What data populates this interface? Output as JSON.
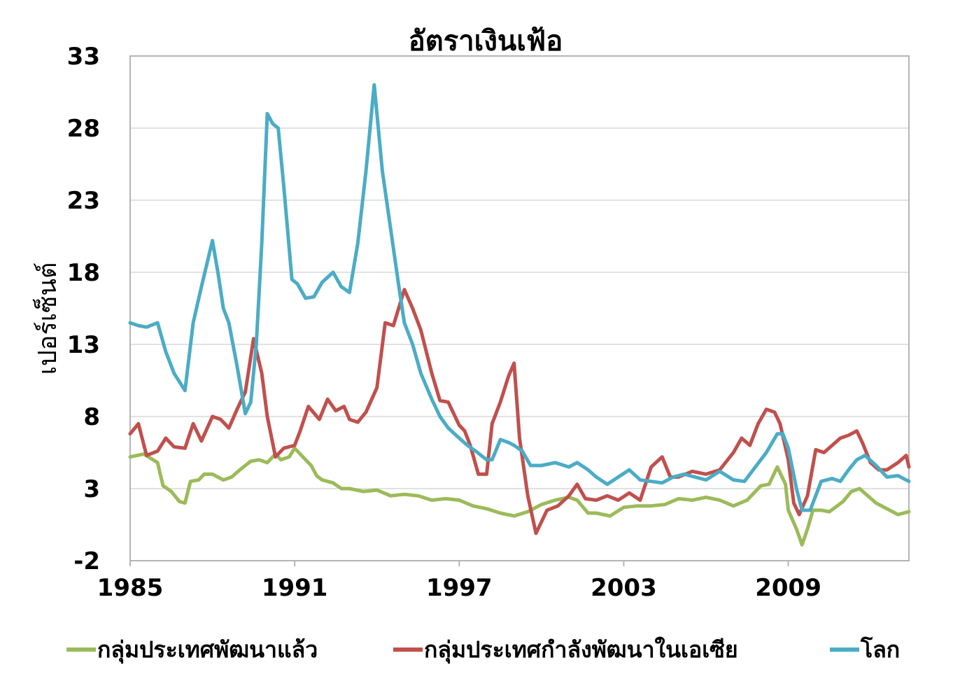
{
  "chart_data": {
    "type": "line",
    "title": "อัตราเงินเฟ้อ",
    "ylabel": "เปอร์เซ็นต์",
    "xlabel": "",
    "xlim": [
      1985,
      2013.4
    ],
    "ylim": [
      -2,
      33
    ],
    "y_ticks": [
      -2,
      3,
      8,
      13,
      18,
      23,
      28,
      33
    ],
    "x_ticks": [
      1985,
      1991,
      1997,
      2003,
      2009
    ],
    "grid": "horizontal",
    "legend_position": "bottom",
    "series": [
      {
        "name": "กลุ่มประเทศพัฒนาแล้ว",
        "color": "#9bbb59",
        "x": [
          1985,
          1985.5,
          1986,
          1986.2,
          1986.5,
          1986.8,
          1987,
          1987.2,
          1987.5,
          1987.7,
          1988,
          1988.4,
          1988.7,
          1989,
          1989.4,
          1989.7,
          1990,
          1990.3,
          1990.5,
          1990.8,
          1991,
          1991.3,
          1991.6,
          1991.8,
          1992,
          1992.4,
          1992.7,
          1993,
          1993.5,
          1994,
          1994.5,
          1995,
          1995.5,
          1996,
          1996.5,
          1997,
          1997.5,
          1998,
          1998.5,
          1999,
          1999.5,
          2000,
          2000.5,
          2001,
          2001.3,
          2001.7,
          2002,
          2002.5,
          2003,
          2003.5,
          2004,
          2004.5,
          2005,
          2005.5,
          2006,
          2006.5,
          2007,
          2007.5,
          2008,
          2008.3,
          2008.6,
          2008.9,
          2009,
          2009.3,
          2009.5,
          2009.7,
          2009.9,
          2010.2,
          2010.5,
          2011,
          2011.3,
          2011.6,
          2011.9,
          2012.2,
          2012.6,
          2013,
          2013.4
        ],
        "values": [
          5.2,
          5.4,
          4.8,
          3.2,
          2.8,
          2.1,
          2.0,
          3.5,
          3.6,
          4.0,
          4.0,
          3.6,
          3.8,
          4.3,
          4.9,
          5.0,
          4.8,
          5.4,
          5.0,
          5.2,
          5.8,
          5.2,
          4.6,
          3.9,
          3.6,
          3.4,
          3.0,
          3.0,
          2.8,
          2.9,
          2.5,
          2.6,
          2.5,
          2.2,
          2.3,
          2.2,
          1.8,
          1.6,
          1.3,
          1.1,
          1.4,
          1.9,
          2.2,
          2.4,
          2.2,
          1.3,
          1.3,
          1.1,
          1.7,
          1.8,
          1.8,
          1.9,
          2.3,
          2.2,
          2.4,
          2.2,
          1.8,
          2.2,
          3.2,
          3.3,
          4.5,
          3.3,
          1.5,
          0.2,
          -0.9,
          0.2,
          1.5,
          1.5,
          1.4,
          2.1,
          2.8,
          3.0,
          2.5,
          2.0,
          1.6,
          1.2,
          1.4
        ]
      },
      {
        "name": "กลุ่มประเทศกำลังพัฒนาในเอเซีย",
        "color": "#c0504d",
        "x": [
          1985,
          1985.3,
          1985.6,
          1986,
          1986.3,
          1986.6,
          1987,
          1987.3,
          1987.6,
          1988,
          1988.3,
          1988.6,
          1988.9,
          1989.2,
          1989.5,
          1989.8,
          1990,
          1990.3,
          1990.6,
          1991,
          1991.2,
          1991.5,
          1991.9,
          1992.2,
          1992.5,
          1992.8,
          1993,
          1993.3,
          1993.6,
          1994,
          1994.3,
          1994.6,
          1995,
          1995.3,
          1995.6,
          1996,
          1996.3,
          1996.6,
          1997,
          1997.2,
          1997.4,
          1997.7,
          1998,
          1998.2,
          1998.5,
          1998.8,
          1999,
          1999.2,
          1999.5,
          1999.8,
          2000.2,
          2000.6,
          2001,
          2001.3,
          2001.6,
          2002,
          2002.4,
          2002.8,
          2003.2,
          2003.6,
          2004,
          2004.4,
          2004.7,
          2005,
          2005.5,
          2006,
          2006.5,
          2007,
          2007.3,
          2007.6,
          2007.9,
          2008.2,
          2008.5,
          2008.7,
          2009,
          2009.2,
          2009.4,
          2009.7,
          2010,
          2010.3,
          2010.6,
          2010.9,
          2011.2,
          2011.5,
          2011.7,
          2012,
          2012.3,
          2012.6,
          2013,
          2013.3,
          2013.4
        ],
        "values": [
          6.8,
          7.5,
          5.3,
          5.6,
          6.5,
          5.9,
          5.8,
          7.5,
          6.3,
          8.0,
          7.8,
          7.2,
          8.5,
          9.7,
          13.4,
          11.0,
          8.0,
          5.2,
          5.8,
          6.0,
          7.0,
          8.7,
          7.8,
          9.2,
          8.4,
          8.7,
          7.8,
          7.6,
          8.3,
          10.0,
          14.5,
          14.3,
          16.8,
          15.5,
          14.0,
          11.0,
          9.1,
          9.0,
          7.4,
          7.0,
          6.0,
          4.0,
          4.0,
          7.5,
          9.0,
          10.8,
          11.7,
          6.5,
          2.5,
          -0.1,
          1.5,
          1.8,
          2.5,
          3.3,
          2.3,
          2.2,
          2.5,
          2.2,
          2.7,
          2.2,
          4.5,
          5.2,
          3.8,
          3.8,
          4.2,
          4.0,
          4.3,
          5.5,
          6.5,
          6.0,
          7.5,
          8.5,
          8.3,
          7.5,
          5.0,
          2.0,
          1.2,
          2.5,
          5.7,
          5.5,
          6.0,
          6.5,
          6.7,
          7.0,
          6.2,
          4.8,
          4.3,
          4.3,
          4.8,
          5.3,
          4.5
        ]
      },
      {
        "name": "โลก",
        "color": "#4bacc6",
        "x": [
          1985,
          1985.3,
          1985.6,
          1986,
          1986.3,
          1986.6,
          1987,
          1987.3,
          1987.6,
          1988,
          1988.2,
          1988.4,
          1988.6,
          1988.9,
          1989.2,
          1989.4,
          1989.6,
          1989.8,
          1990,
          1990.2,
          1990.4,
          1990.6,
          1990.9,
          1991.1,
          1991.4,
          1991.7,
          1992,
          1992.4,
          1992.7,
          1993,
          1993.3,
          1993.6,
          1993.9,
          1994.2,
          1994.5,
          1994.8,
          1995,
          1995.3,
          1995.6,
          1996,
          1996.3,
          1996.6,
          1997,
          1997.3,
          1997.6,
          1998,
          1998.2,
          1998.5,
          1998.8,
          1999,
          1999.3,
          1999.6,
          2000,
          2000.5,
          2001,
          2001.3,
          2001.7,
          2002,
          2002.4,
          2002.8,
          2003.2,
          2003.6,
          2004,
          2004.4,
          2004.8,
          2005.2,
          2005.6,
          2006,
          2006.5,
          2007,
          2007.4,
          2007.8,
          2008.2,
          2008.6,
          2008.8,
          2009,
          2009.3,
          2009.5,
          2009.8,
          2010.2,
          2010.6,
          2010.9,
          2011.2,
          2011.5,
          2011.8,
          2012.2,
          2012.6,
          2013,
          2013.4
        ],
        "values": [
          14.5,
          14.3,
          14.2,
          14.5,
          12.5,
          11.0,
          9.8,
          14.5,
          17.0,
          20.2,
          18.0,
          15.5,
          14.5,
          11.5,
          8.2,
          9.0,
          13.0,
          20.0,
          29.0,
          28.3,
          28.0,
          24.0,
          17.5,
          17.2,
          16.2,
          16.3,
          17.3,
          18.0,
          17.0,
          16.6,
          20.0,
          25.0,
          31.0,
          25.0,
          21.0,
          17.0,
          14.5,
          13.0,
          11.0,
          9.2,
          8.0,
          7.2,
          6.5,
          6.0,
          5.6,
          5.0,
          5.0,
          6.4,
          6.2,
          6.0,
          5.6,
          4.6,
          4.6,
          4.8,
          4.5,
          4.8,
          4.3,
          3.8,
          3.3,
          3.8,
          4.3,
          3.6,
          3.5,
          3.4,
          3.8,
          4.0,
          3.8,
          3.6,
          4.2,
          3.6,
          3.5,
          4.5,
          5.5,
          6.8,
          6.8,
          5.8,
          3.0,
          1.5,
          1.5,
          3.5,
          3.7,
          3.5,
          4.3,
          5.0,
          5.3,
          4.6,
          3.8,
          3.9,
          3.5
        ]
      }
    ]
  }
}
